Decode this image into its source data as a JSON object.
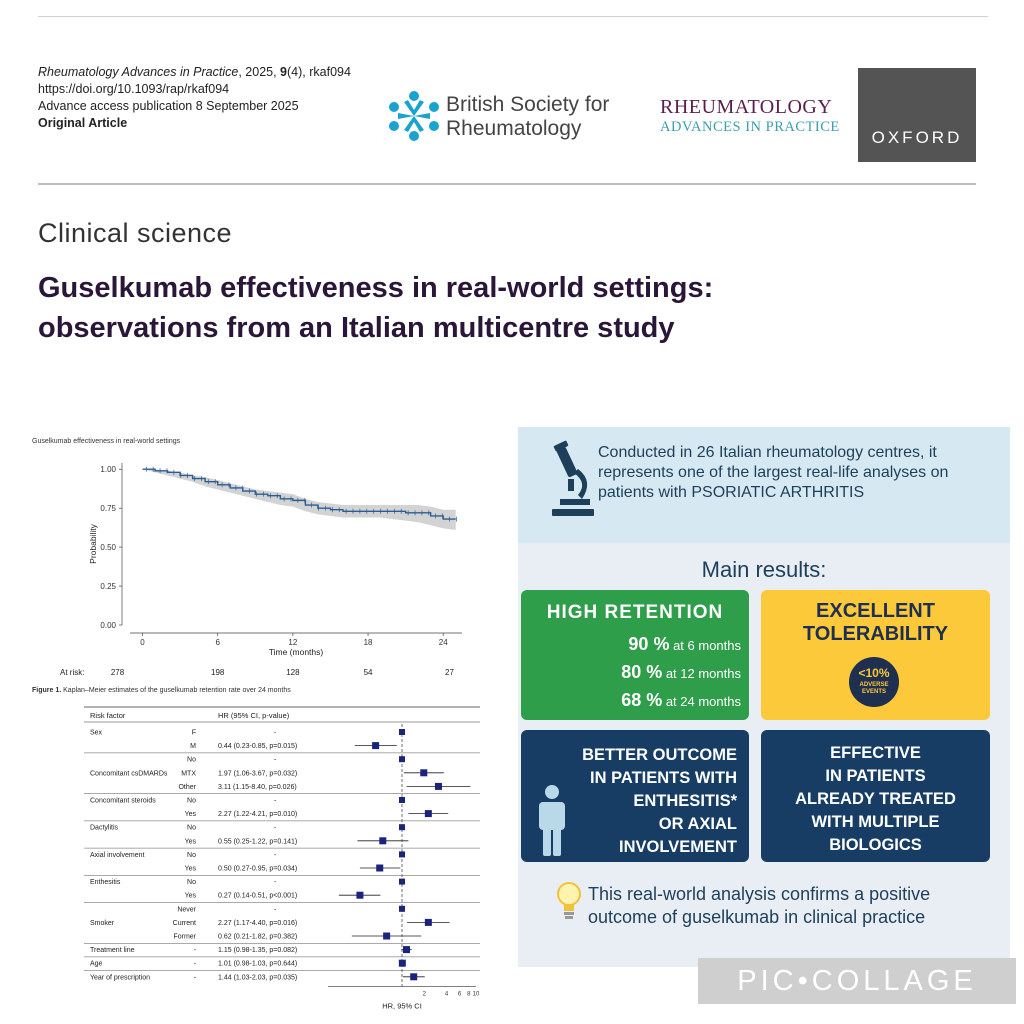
{
  "header": {
    "journal_name": "Rheumatology Advances in Practice",
    "citation_year": ", 2025, ",
    "volume": "9",
    "issue": "(4)",
    "article_id": ", rkaf094",
    "doi": "https://doi.org/10.1093/rap/rkaf094",
    "publication": "Advance access publication 8 September 2025",
    "article_type": "Original Article",
    "bsr_line1": "British Society for",
    "bsr_line2": "Rheumatology",
    "rap_title": "RHEUMATOLOGY",
    "rap_subtitle": "ADVANCES IN PRACTICE",
    "oxford": "OXFORD",
    "colors": {
      "bsr_blue": "#1aa3cf",
      "rap_purple": "#5a1f4a",
      "rap_teal": "#3aa0ad",
      "oxford_gray": "#545454"
    }
  },
  "section": "Clinical science",
  "title_line1": "Guselkumab effectiveness in real-world settings:",
  "title_line2": "observations from an Italian multicentre study",
  "figure1": {
    "header": "Guselkumab effectiveness in real-world settings",
    "caption_label": "Figure 1.",
    "caption_text": " Kaplan–Meier estimates of the guselkumab retention rate over 24 months",
    "at_risk_label": "At risk:",
    "at_risk": [
      "278",
      "198",
      "128",
      "54",
      "27"
    ]
  },
  "chart_data": [
    {
      "type": "line",
      "xlabel": "Time (months)",
      "ylabel": "Probability",
      "xlim": [
        -1,
        25.5
      ],
      "ylim": [
        0,
        1.04
      ],
      "x_ticks": [
        0,
        6,
        12,
        18,
        24
      ],
      "y_ticks": [
        0.0,
        0.25,
        0.5,
        0.75,
        1.0
      ],
      "y_tick_labels": [
        "0.00",
        "0.25",
        "0.50",
        "0.75",
        "1.00"
      ],
      "series": [
        {
          "x": [
            0,
            1,
            2,
            3,
            4,
            5,
            6,
            7,
            8,
            9,
            10,
            11,
            12,
            13,
            14,
            15,
            16,
            17,
            18,
            19,
            20,
            21,
            22,
            23,
            24,
            25
          ],
          "y": [
            1.0,
            0.99,
            0.98,
            0.96,
            0.94,
            0.92,
            0.9,
            0.88,
            0.86,
            0.84,
            0.83,
            0.81,
            0.8,
            0.77,
            0.75,
            0.74,
            0.73,
            0.73,
            0.73,
            0.73,
            0.73,
            0.72,
            0.72,
            0.7,
            0.68,
            0.68
          ],
          "ci_low": [
            1.0,
            0.98,
            0.96,
            0.94,
            0.92,
            0.89,
            0.87,
            0.85,
            0.83,
            0.81,
            0.79,
            0.77,
            0.76,
            0.73,
            0.71,
            0.7,
            0.69,
            0.69,
            0.69,
            0.69,
            0.68,
            0.67,
            0.66,
            0.64,
            0.62,
            0.61
          ],
          "ci_high": [
            1.0,
            1.0,
            0.99,
            0.98,
            0.96,
            0.95,
            0.93,
            0.91,
            0.89,
            0.87,
            0.86,
            0.85,
            0.84,
            0.81,
            0.79,
            0.78,
            0.77,
            0.77,
            0.77,
            0.77,
            0.77,
            0.77,
            0.77,
            0.76,
            0.74,
            0.74
          ],
          "color": "#2b5d94",
          "ci_color": "#d3d3d3"
        }
      ]
    },
    {
      "type": "scatter",
      "xlabel": "HR, 95% CI",
      "x_scale": "log",
      "xlim": [
        0.1,
        10
      ],
      "x_ticks": [
        2,
        4,
        6,
        8,
        10
      ],
      "reference_line": 1,
      "header_factor": "Risk factor",
      "header_hr": "HR (95% CI, p-value)",
      "rows": [
        {
          "factor": "Sex",
          "level": "F",
          "hr_text": "-",
          "hr": 1,
          "lo": null,
          "hi": null,
          "ref": true
        },
        {
          "factor": "",
          "level": "M",
          "hr_text": "0.44 (0.23-0.85, p=0.015)",
          "hr": 0.44,
          "lo": 0.23,
          "hi": 0.85
        },
        {
          "factor": "",
          "level": "No",
          "hr_text": "-",
          "hr": 1,
          "lo": null,
          "hi": null,
          "ref": true
        },
        {
          "factor": "Concomitant csDMARDs",
          "level": "MTX",
          "hr_text": "1.97 (1.06-3.67, p=0.032)",
          "hr": 1.97,
          "lo": 1.06,
          "hi": 3.67
        },
        {
          "factor": "",
          "level": "Other",
          "hr_text": "3.11 (1.15-8.40, p=0.026)",
          "hr": 3.11,
          "lo": 1.15,
          "hi": 8.4
        },
        {
          "factor": "Concomitant steroids",
          "level": "No",
          "hr_text": "-",
          "hr": 1,
          "lo": null,
          "hi": null,
          "ref": true
        },
        {
          "factor": "",
          "level": "Yes",
          "hr_text": "2.27 (1.22-4.21, p=0.010)",
          "hr": 2.27,
          "lo": 1.22,
          "hi": 4.21
        },
        {
          "factor": "Dactylitis",
          "level": "No",
          "hr_text": "-",
          "hr": 1,
          "lo": null,
          "hi": null,
          "ref": true
        },
        {
          "factor": "",
          "level": "Yes",
          "hr_text": "0.55 (0.25-1.22, p=0.141)",
          "hr": 0.55,
          "lo": 0.25,
          "hi": 1.22
        },
        {
          "factor": "Axial involvement",
          "level": "No",
          "hr_text": "-",
          "hr": 1,
          "lo": null,
          "hi": null,
          "ref": true
        },
        {
          "factor": "",
          "level": "Yes",
          "hr_text": "0.50 (0.27-0.95, p=0.034)",
          "hr": 0.5,
          "lo": 0.27,
          "hi": 0.95
        },
        {
          "factor": "Enthesitis",
          "level": "No",
          "hr_text": "-",
          "hr": 1,
          "lo": null,
          "hi": null,
          "ref": true
        },
        {
          "factor": "",
          "level": "Yes",
          "hr_text": "0.27 (0.14-0.51, p<0.001)",
          "hr": 0.27,
          "lo": 0.14,
          "hi": 0.51
        },
        {
          "factor": "",
          "level": "Never",
          "hr_text": "-",
          "hr": 1,
          "lo": null,
          "hi": null,
          "ref": true
        },
        {
          "factor": "Smoker",
          "level": "Current",
          "hr_text": "2.27 (1.17-4.40, p=0.016)",
          "hr": 2.27,
          "lo": 1.17,
          "hi": 4.4
        },
        {
          "factor": "",
          "level": "Former",
          "hr_text": "0.62 (0.21-1.82, p=0.382)",
          "hr": 0.62,
          "lo": 0.21,
          "hi": 1.82
        },
        {
          "factor": "Treatment line",
          "level": "-",
          "hr_text": "1.15 (0.98-1.35, p=0.082)",
          "hr": 1.15,
          "lo": 0.98,
          "hi": 1.35
        },
        {
          "factor": "Age",
          "level": "-",
          "hr_text": "1.01 (0.98-1.03, p=0.644)",
          "hr": 1.01,
          "lo": 0.98,
          "hi": 1.03
        },
        {
          "factor": "Year of prescription",
          "level": "-",
          "hr_text": "1.44 (1.03-2.03, p=0.035)",
          "hr": 1.44,
          "lo": 1.03,
          "hi": 2.03
        }
      ]
    }
  ],
  "infographic": {
    "intro": "Conducted in 26 Italian rheumatology centres, it represents one of the largest real-life analyses on patients with PSORIATIC ARTHRITIS",
    "main_results": "Main results:",
    "retention": {
      "title": "HIGH RETENTION",
      "rows": [
        {
          "pct": "90 %",
          "label": " at 6 months",
          "value": 90
        },
        {
          "pct": "80 %",
          "label": " at 12 months",
          "value": 80
        },
        {
          "pct": "68 %",
          "label": " at 24 months",
          "value": 68
        }
      ]
    },
    "tolerability": {
      "title_line1": "EXCELLENT",
      "title_line2": "TOLERABILITY",
      "badge_pct": "<10%",
      "badge_line1": "ADVERSE",
      "badge_line2": "EVENTS"
    },
    "enthesitis": {
      "line1": "BETTER OUTCOME",
      "line2": "IN PATIENTS WITH",
      "line3": "ENTHESITIS*",
      "line4": "OR AXIAL",
      "line5": "INVOLVEMENT"
    },
    "biologics": {
      "line1": "EFFECTIVE",
      "line2": "IN PATIENTS",
      "line3": "ALREADY TREATED",
      "line4": "WITH MULTIPLE",
      "line5": "BIOLOGICS"
    },
    "conclusion": "This real-world analysis confirms a positive outcome of guselkumab in clinical practice",
    "colors": {
      "green": "#2e9e4a",
      "yellow": "#fcc93a",
      "navy": "#173d64",
      "light_blue": "#d6e9f2"
    },
    "icons": [
      "microscope-icon",
      "person-icon",
      "light-bulb-icon"
    ]
  },
  "watermark": "PIC•COLLAGE"
}
